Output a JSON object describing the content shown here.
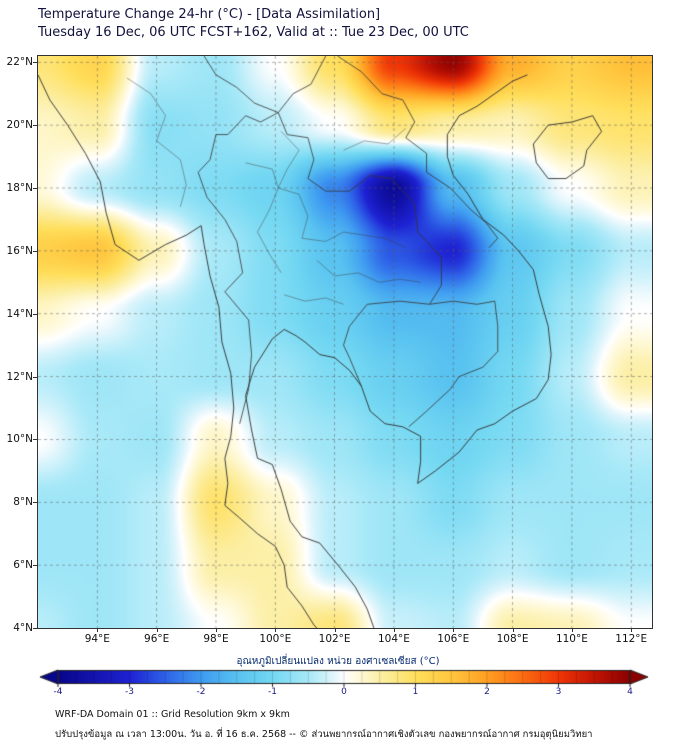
{
  "chart_data": {
    "type": "heatmap",
    "title": "Temperature Change 24-hr (°C) - [Data Assimilation]",
    "subtitle": "Tuesday 16 Dec, 06 UTC FCST+162, Valid at :: Tue 23 Dec, 00 UTC",
    "lon_range": [
      92,
      112.7
    ],
    "lat_range": [
      4,
      22.2
    ],
    "x_ticks": {
      "lons": [
        94,
        96,
        98,
        100,
        102,
        104,
        106,
        108,
        110,
        112
      ],
      "labels": [
        "94°E",
        "96°E",
        "98°E",
        "100°E",
        "102°E",
        "104°E",
        "106°E",
        "108°E",
        "110°E",
        "112°E"
      ]
    },
    "y_ticks": {
      "lats": [
        22,
        20,
        18,
        16,
        14,
        12,
        10,
        8,
        6,
        4
      ],
      "labels": [
        "22°N",
        "20°N",
        "18°N",
        "16°N",
        "14°N",
        "12°N",
        "10°N",
        "8°N",
        "6°N",
        "4°N"
      ]
    },
    "grid": {
      "lons": [
        92,
        94,
        96,
        98,
        100,
        102,
        104,
        106,
        108,
        110,
        112
      ],
      "lats": [
        22,
        20,
        18,
        16,
        14,
        12,
        10,
        8,
        6,
        4
      ],
      "values": [
        [
          0.8,
          1.2,
          -0.4,
          -0.6,
          0.0,
          1.0,
          3.0,
          3.9,
          1.8,
          1.3,
          1.6
        ],
        [
          0.3,
          0.5,
          -0.8,
          -0.7,
          -0.4,
          0.0,
          0.8,
          0.5,
          0.4,
          0.8,
          0.9
        ],
        [
          0.2,
          -0.4,
          -0.7,
          -0.9,
          -1.1,
          -2.2,
          -3.8,
          -1.6,
          -0.6,
          0.0,
          0.4
        ],
        [
          1.3,
          1.5,
          0.4,
          -0.5,
          -0.9,
          -1.5,
          -2.6,
          -3.0,
          -1.4,
          -0.9,
          -0.4
        ],
        [
          0.3,
          0.0,
          -0.4,
          -0.6,
          -0.9,
          -1.2,
          -1.6,
          -1.6,
          -1.2,
          -0.6,
          0.0
        ],
        [
          -0.4,
          -0.6,
          -0.5,
          -0.6,
          -0.6,
          -0.9,
          -1.2,
          -1.5,
          -1.0,
          -0.4,
          0.5
        ],
        [
          0.0,
          -0.5,
          -0.6,
          0.3,
          -0.4,
          -0.6,
          -0.9,
          -1.1,
          -0.9,
          -0.6,
          -0.4
        ],
        [
          -0.6,
          -0.6,
          -0.4,
          0.9,
          0.3,
          -0.4,
          -0.6,
          -0.9,
          -0.6,
          -0.6,
          -0.6
        ],
        [
          -0.6,
          -0.6,
          -0.4,
          0.5,
          0.5,
          -0.4,
          -0.6,
          -0.6,
          -0.4,
          -0.6,
          -0.5
        ],
        [
          -0.4,
          -0.6,
          -0.4,
          0.0,
          0.5,
          0.8,
          -0.3,
          -0.4,
          0.5,
          0.4,
          0.0
        ]
      ]
    },
    "colormap": [
      [
        -4.0,
        "#08068A"
      ],
      [
        -3.0,
        "#1E22D3"
      ],
      [
        -2.5,
        "#2E63E8"
      ],
      [
        -2.0,
        "#3F9BF0"
      ],
      [
        -1.5,
        "#58C2F0"
      ],
      [
        -1.0,
        "#74D8F2"
      ],
      [
        -0.5,
        "#A9E9F8"
      ],
      [
        -0.15,
        "#E2F6FC"
      ],
      [
        0.0,
        "#FFFFFF"
      ],
      [
        0.15,
        "#FFFBE2"
      ],
      [
        0.5,
        "#FCEFA6"
      ],
      [
        1.0,
        "#FFDF5C"
      ],
      [
        1.5,
        "#FFC63E"
      ],
      [
        2.0,
        "#FF9F22"
      ],
      [
        2.5,
        "#FC6C12"
      ],
      [
        3.0,
        "#EF3506"
      ],
      [
        3.5,
        "#C11404"
      ],
      [
        4.0,
        "#8B0000"
      ]
    ],
    "colorbar": {
      "label": "อุณหภูมิเปลี่ยนแปลง หน่วย องศาเซลเซียส (°C)",
      "range": [
        -4,
        4
      ],
      "tick_values": [
        -4,
        -3,
        -2,
        -1,
        0,
        1,
        2,
        3,
        4
      ],
      "tick_labels": [
        "-4",
        "-3",
        "-2",
        "-1",
        "0",
        "1",
        "2",
        "3",
        "4"
      ]
    },
    "grid_lines": {
      "dashed": true,
      "lon_step": 2,
      "lat_step": 2
    },
    "map_outlines": {
      "coast": [
        [
          [
            92.0,
            21.6
          ],
          [
            92.4,
            20.8
          ],
          [
            93.0,
            20.0
          ],
          [
            93.6,
            19.1
          ],
          [
            94.1,
            18.2
          ],
          [
            94.3,
            17.2
          ],
          [
            94.6,
            16.2
          ],
          [
            95.4,
            15.7
          ],
          [
            96.3,
            16.2
          ],
          [
            97.0,
            16.5
          ],
          [
            97.5,
            16.8
          ],
          [
            97.6,
            16.2
          ],
          [
            97.8,
            15.2
          ],
          [
            98.1,
            14.2
          ],
          [
            98.2,
            13.1
          ],
          [
            98.5,
            12.1
          ],
          [
            98.6,
            11.0
          ],
          [
            98.5,
            10.1
          ],
          [
            98.3,
            9.4
          ],
          [
            98.4,
            8.6
          ],
          [
            98.3,
            7.9
          ],
          [
            98.8,
            7.5
          ],
          [
            99.4,
            7.0
          ],
          [
            100.0,
            6.6
          ],
          [
            100.3,
            6.0
          ],
          [
            100.4,
            5.3
          ],
          [
            100.9,
            4.7
          ],
          [
            101.3,
            4.1
          ],
          [
            101.6,
            3.8
          ]
        ],
        [
          [
            103.4,
            3.8
          ],
          [
            103.1,
            4.6
          ],
          [
            102.7,
            5.3
          ],
          [
            102.2,
            5.9
          ],
          [
            101.5,
            6.7
          ],
          [
            100.9,
            6.9
          ],
          [
            100.5,
            7.4
          ],
          [
            100.2,
            8.4
          ],
          [
            99.9,
            9.2
          ],
          [
            99.4,
            9.4
          ],
          [
            99.2,
            10.3
          ],
          [
            99.0,
            11.4
          ],
          [
            99.3,
            12.3
          ],
          [
            99.9,
            13.2
          ],
          [
            100.3,
            13.5
          ],
          [
            100.7,
            13.3
          ],
          [
            101.0,
            13.1
          ],
          [
            101.5,
            12.7
          ],
          [
            102.0,
            12.6
          ],
          [
            102.5,
            12.2
          ],
          [
            102.9,
            11.7
          ],
          [
            103.2,
            10.9
          ],
          [
            103.7,
            10.5
          ],
          [
            104.3,
            10.4
          ],
          [
            104.9,
            10.1
          ],
          [
            104.9,
            9.3
          ],
          [
            104.8,
            8.6
          ],
          [
            105.4,
            9.0
          ],
          [
            106.2,
            9.6
          ],
          [
            106.8,
            10.3
          ],
          [
            107.4,
            10.5
          ],
          [
            108.0,
            10.9
          ],
          [
            108.8,
            11.3
          ],
          [
            109.2,
            11.9
          ],
          [
            109.3,
            12.7
          ],
          [
            109.2,
            13.6
          ],
          [
            108.9,
            14.6
          ],
          [
            108.7,
            15.4
          ],
          [
            108.2,
            16.0
          ],
          [
            107.7,
            16.5
          ],
          [
            107.0,
            17.0
          ],
          [
            106.5,
            17.8
          ],
          [
            106.0,
            18.4
          ],
          [
            105.8,
            19.0
          ],
          [
            105.8,
            19.7
          ],
          [
            106.2,
            20.3
          ],
          [
            106.8,
            20.6
          ],
          [
            107.4,
            21.0
          ],
          [
            108.0,
            21.4
          ],
          [
            108.5,
            21.6
          ]
        ],
        [
          [
            108.7,
            19.4
          ],
          [
            109.2,
            20.0
          ],
          [
            110.0,
            20.1
          ],
          [
            110.7,
            20.3
          ],
          [
            111.0,
            19.8
          ],
          [
            110.5,
            19.2
          ],
          [
            110.4,
            18.7
          ],
          [
            109.8,
            18.3
          ],
          [
            109.2,
            18.3
          ],
          [
            108.8,
            18.8
          ],
          [
            108.7,
            19.4
          ]
        ]
      ],
      "borders": [
        [
          [
            100.1,
            20.4
          ],
          [
            99.5,
            20.1
          ],
          [
            99.0,
            20.3
          ],
          [
            98.4,
            19.7
          ],
          [
            98.0,
            19.7
          ],
          [
            97.8,
            18.9
          ],
          [
            97.4,
            18.5
          ],
          [
            97.7,
            17.7
          ],
          [
            98.3,
            17.0
          ],
          [
            98.7,
            16.3
          ],
          [
            98.9,
            15.3
          ],
          [
            98.3,
            14.7
          ],
          [
            99.1,
            13.8
          ],
          [
            99.2,
            12.7
          ],
          [
            99.1,
            11.6
          ],
          [
            98.8,
            10.5
          ]
        ],
        [
          [
            100.1,
            20.4
          ],
          [
            100.4,
            19.7
          ],
          [
            101.1,
            19.6
          ],
          [
            101.3,
            18.9
          ],
          [
            101.1,
            18.3
          ],
          [
            101.7,
            17.9
          ],
          [
            102.5,
            17.9
          ],
          [
            103.2,
            18.4
          ],
          [
            103.9,
            18.3
          ],
          [
            104.7,
            17.5
          ],
          [
            104.8,
            16.6
          ],
          [
            105.6,
            15.8
          ],
          [
            105.6,
            14.9
          ],
          [
            105.2,
            14.3
          ]
        ],
        [
          [
            105.2,
            14.3
          ],
          [
            104.2,
            14.4
          ],
          [
            103.1,
            14.3
          ],
          [
            102.5,
            13.6
          ],
          [
            102.3,
            13.0
          ],
          [
            102.5,
            12.6
          ],
          [
            102.9,
            11.7
          ]
        ],
        [
          [
            102.1,
            22.2
          ],
          [
            102.9,
            21.7
          ],
          [
            103.6,
            21.0
          ],
          [
            104.3,
            20.8
          ],
          [
            104.7,
            20.1
          ],
          [
            104.4,
            19.6
          ],
          [
            105.1,
            19.1
          ],
          [
            105.1,
            18.5
          ],
          [
            105.9,
            18.0
          ],
          [
            106.6,
            17.3
          ],
          [
            107.1,
            16.9
          ],
          [
            107.5,
            16.4
          ],
          [
            107.2,
            16.1
          ]
        ],
        [
          [
            104.5,
            10.4
          ],
          [
            105.1,
            10.9
          ],
          [
            105.9,
            11.6
          ],
          [
            106.2,
            12.0
          ],
          [
            107.0,
            12.3
          ],
          [
            107.5,
            12.8
          ],
          [
            107.5,
            13.6
          ],
          [
            107.4,
            14.4
          ]
        ],
        [
          [
            105.2,
            14.3
          ],
          [
            106.0,
            14.4
          ],
          [
            106.8,
            14.3
          ],
          [
            107.4,
            14.4
          ]
        ],
        [
          [
            100.1,
            20.4
          ],
          [
            100.6,
            21.0
          ],
          [
            101.2,
            21.3
          ],
          [
            101.7,
            22.2
          ]
        ],
        [
          [
            97.6,
            22.2
          ],
          [
            98.0,
            21.6
          ],
          [
            98.7,
            21.2
          ],
          [
            99.3,
            20.7
          ],
          [
            100.1,
            20.4
          ]
        ]
      ],
      "internal": [
        [
          [
            100.2,
            19.8
          ],
          [
            100.8,
            19.2
          ],
          [
            100.4,
            18.6
          ],
          [
            100.1,
            18.0
          ]
        ],
        [
          [
            99.0,
            18.8
          ],
          [
            99.9,
            18.6
          ],
          [
            100.1,
            18.0
          ],
          [
            99.8,
            17.3
          ]
        ],
        [
          [
            100.1,
            18.0
          ],
          [
            100.8,
            17.8
          ],
          [
            101.1,
            17.1
          ],
          [
            100.9,
            16.4
          ]
        ],
        [
          [
            99.8,
            17.3
          ],
          [
            99.4,
            16.6
          ],
          [
            99.8,
            15.9
          ],
          [
            100.2,
            15.3
          ]
        ],
        [
          [
            100.9,
            16.4
          ],
          [
            101.7,
            16.3
          ],
          [
            102.3,
            16.6
          ],
          [
            103.0,
            16.5
          ],
          [
            103.7,
            16.4
          ],
          [
            104.4,
            16.1
          ]
        ],
        [
          [
            101.4,
            15.7
          ],
          [
            102.0,
            15.2
          ],
          [
            102.8,
            15.3
          ],
          [
            103.5,
            15.0
          ],
          [
            104.2,
            15.1
          ],
          [
            104.9,
            15.0
          ]
        ],
        [
          [
            100.3,
            14.6
          ],
          [
            101.0,
            14.4
          ],
          [
            101.7,
            14.5
          ],
          [
            102.3,
            14.3
          ]
        ],
        [
          [
            102.3,
            19.2
          ],
          [
            103.0,
            19.5
          ],
          [
            103.8,
            19.4
          ],
          [
            104.4,
            19.9
          ]
        ],
        [
          [
            95.0,
            21.5
          ],
          [
            95.8,
            21.0
          ],
          [
            96.3,
            20.3
          ],
          [
            96.0,
            19.5
          ]
        ],
        [
          [
            96.0,
            19.5
          ],
          [
            96.8,
            18.9
          ],
          [
            97.0,
            18.1
          ],
          [
            96.8,
            17.4
          ]
        ]
      ]
    }
  },
  "footer": {
    "line1": "WRF-DA Domain 01 :: Grid Resolution 9km x 9km",
    "line2": "ปรับปรุงข้อมูล ณ เวลา 13:00น. วัน อ. ที่ 16 ธ.ค. 2568 -- © ส่วนพยากรณ์อากาศเชิงตัวเลข กองพยากรณ์อากาศ กรมอุตุนิยมวิทยา"
  }
}
